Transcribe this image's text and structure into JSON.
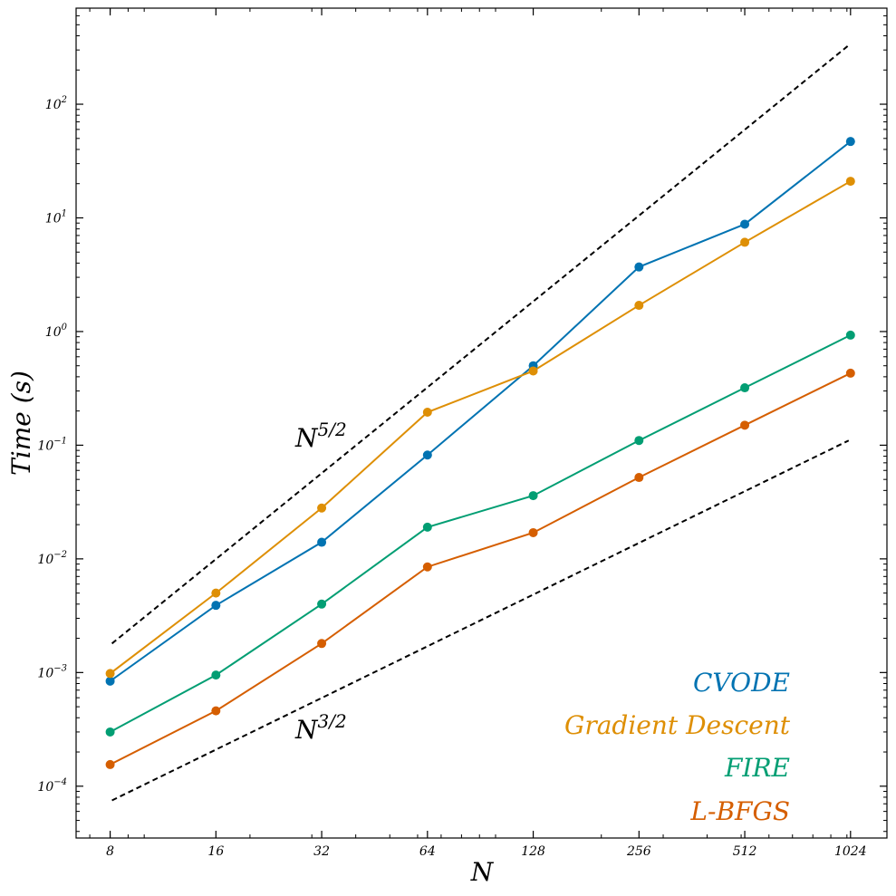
{
  "chart_data": {
    "type": "line",
    "xscale": "log2",
    "yscale": "log10",
    "xlabel": "N",
    "ylabel": "Time (s)",
    "x": [
      8,
      16,
      32,
      64,
      128,
      256,
      512,
      1024
    ],
    "x_tick_labels": [
      "8",
      "16",
      "32",
      "64",
      "128",
      "256",
      "512",
      "1024"
    ],
    "xlim": [
      6.4,
      1300
    ],
    "ylim": [
      3.5e-05,
      700
    ],
    "y_ticks": [
      {
        "base": "10",
        "exp": "2",
        "value": 100
      },
      {
        "base": "10",
        "exp": "1",
        "value": 10
      },
      {
        "base": "10",
        "exp": "0",
        "value": 1
      },
      {
        "base": "10",
        "exp": "−1",
        "value": 0.1
      },
      {
        "base": "10",
        "exp": "−2",
        "value": 0.01
      },
      {
        "base": "10",
        "exp": "−3",
        "value": 0.001
      },
      {
        "base": "10",
        "exp": "−4",
        "value": 0.0001
      }
    ],
    "series": [
      {
        "name": "CVODE",
        "color": "#0173b2",
        "marker": "circle",
        "values": [
          0.00084,
          0.0039,
          0.014,
          0.082,
          0.5,
          3.7,
          8.8,
          47
        ]
      },
      {
        "name": "Gradient Descent",
        "color": "#de8f05",
        "marker": "circle",
        "values": [
          0.00098,
          0.005,
          0.028,
          0.195,
          0.45,
          1.7,
          6.1,
          21
        ]
      },
      {
        "name": "FIRE",
        "color": "#029e73",
        "marker": "circle",
        "values": [
          0.0003,
          0.00095,
          0.004,
          0.019,
          0.036,
          0.11,
          0.32,
          0.93
        ]
      },
      {
        "name": "L-BFGS",
        "color": "#d55e00",
        "marker": "circle",
        "values": [
          0.000155,
          0.00046,
          0.0018,
          0.0085,
          0.017,
          0.052,
          0.15,
          0.43
        ]
      }
    ],
    "reference_lines": [
      {
        "name": "N^5/2",
        "base": "N",
        "exp": "5/2",
        "style": "dashed",
        "color": "#000000",
        "x": [
          8,
          1024
        ],
        "values": [
          0.0018,
          330
        ]
      },
      {
        "name": "N^3/2",
        "base": "N",
        "exp": "3/2",
        "style": "dashed",
        "color": "#000000",
        "x": [
          8,
          1024
        ],
        "values": [
          7.5e-05,
          0.11
        ]
      }
    ],
    "legend_placement": "bottom-right"
  }
}
